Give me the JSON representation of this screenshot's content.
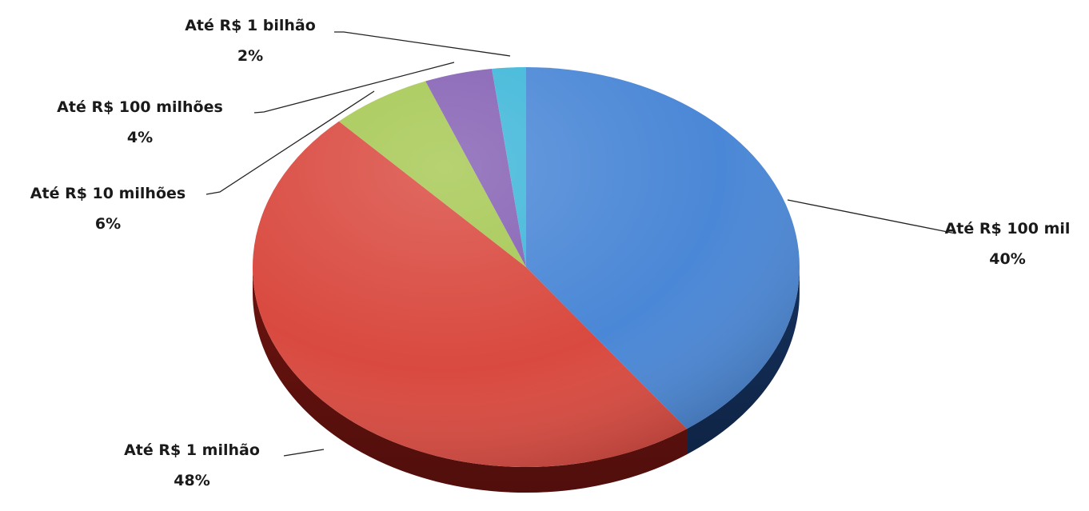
{
  "chart_data": {
    "type": "pie",
    "title": "",
    "colors": {
      "top": [
        "#4a87d6",
        "#d9493f",
        "#a6c853",
        "#8561b4",
        "#3fb7d9"
      ],
      "side": [
        "#14305c",
        "#6b130f",
        "#3f5a12",
        "#35205c",
        "#10556a"
      ],
      "text": "#1a1a1a",
      "leader": "#222222"
    },
    "slices": [
      {
        "label": "Até R$ 100 mil",
        "value": 40,
        "display": "40%"
      },
      {
        "label": "Até R$ 1 milhão",
        "value": 48,
        "display": "48%"
      },
      {
        "label": "Até R$ 10 milhões",
        "value": 6,
        "display": "6%"
      },
      {
        "label": "Até R$ 100 milhões",
        "value": 4,
        "display": "4%"
      },
      {
        "label": "Até R$ 1 bilhão",
        "value": 2,
        "display": "2%"
      }
    ]
  }
}
